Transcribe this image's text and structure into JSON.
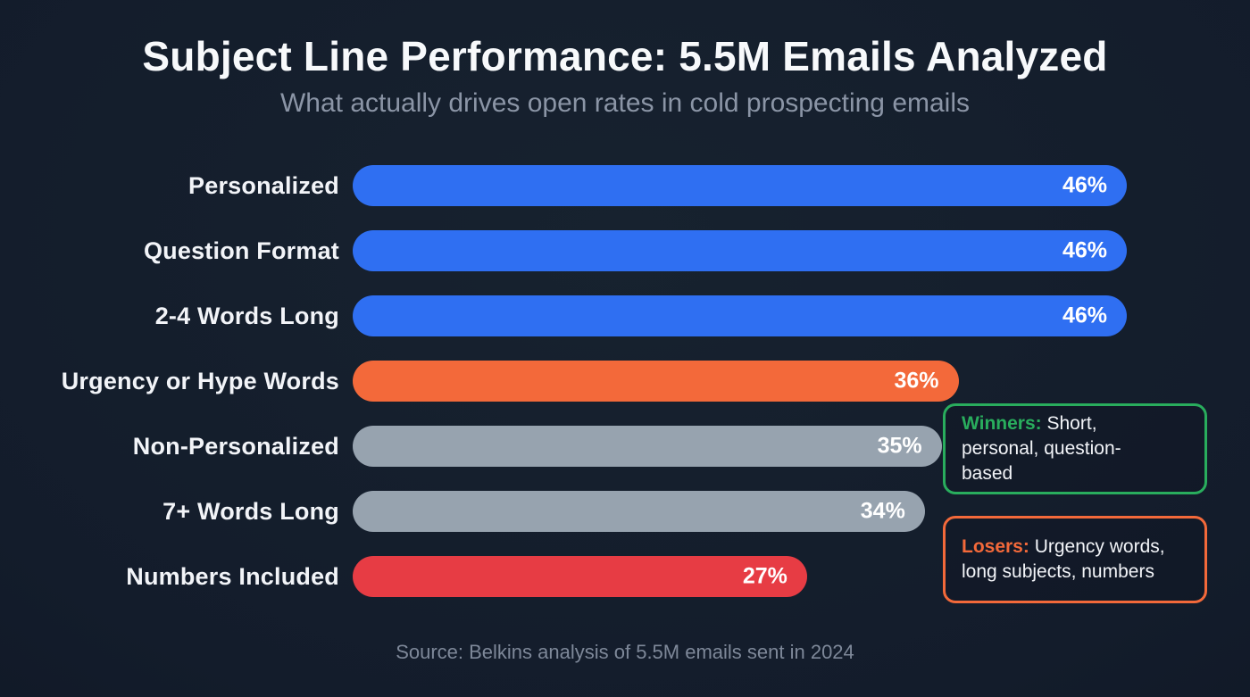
{
  "header": {
    "title": "Subject Line Performance: 5.5M Emails Analyzed",
    "subtitle": "What actually drives open rates in cold prospecting emails"
  },
  "chart_data": {
    "type": "bar",
    "orientation": "horizontal",
    "title": "Subject Line Performance: 5.5M Emails Analyzed",
    "subtitle": "What actually drives open rates in cold prospecting emails",
    "value_suffix": "%",
    "x_max": 46,
    "grid": false,
    "value_labels_position": "inside-end",
    "categories": [
      "Personalized",
      "Question Format",
      "2-4 Words Long",
      "Urgency or Hype Words",
      "Non-Personalized",
      "7+ Words Long",
      "Numbers Included"
    ],
    "values": [
      46,
      46,
      46,
      36,
      35,
      34,
      27
    ],
    "items": [
      {
        "category": "Personalized",
        "value": 46,
        "label": "46%",
        "color": "#2f6ff2"
      },
      {
        "category": "Question Format",
        "value": 46,
        "label": "46%",
        "color": "#2f6ff2"
      },
      {
        "category": "2-4 Words Long",
        "value": 46,
        "label": "46%",
        "color": "#2f6ff2"
      },
      {
        "category": "Urgency or Hype Words",
        "value": 36,
        "label": "36%",
        "color": "#f3693a"
      },
      {
        "category": "Non-Personalized",
        "value": 35,
        "label": "35%",
        "color": "#97a3af"
      },
      {
        "category": "7+ Words Long",
        "value": 34,
        "label": "34%",
        "color": "#97a3af"
      },
      {
        "category": "Numbers Included",
        "value": 27,
        "label": "27%",
        "color": "#e73c44"
      }
    ]
  },
  "annotations": {
    "winners": {
      "lead": "Winners:",
      "text": "Short, personal, question-based",
      "accent_color": "#29ad5d"
    },
    "losers": {
      "lead": "Losers:",
      "text": "Urgency words, long subjects, numbers",
      "accent_color": "#f3693a"
    }
  },
  "footer": {
    "source": "Source: Belkins analysis of 5.5M emails sent in 2024"
  },
  "colors": {
    "background": "#131c2b",
    "title_text": "#f7f9fb",
    "subtitle_text": "#8b95a6",
    "bar_blue": "#2f6ff2",
    "bar_orange": "#f3693a",
    "bar_gray": "#97a3af",
    "bar_red": "#e73c44",
    "winners_green": "#29ad5d",
    "losers_orange": "#f3693a",
    "source_text": "#7e8899"
  }
}
